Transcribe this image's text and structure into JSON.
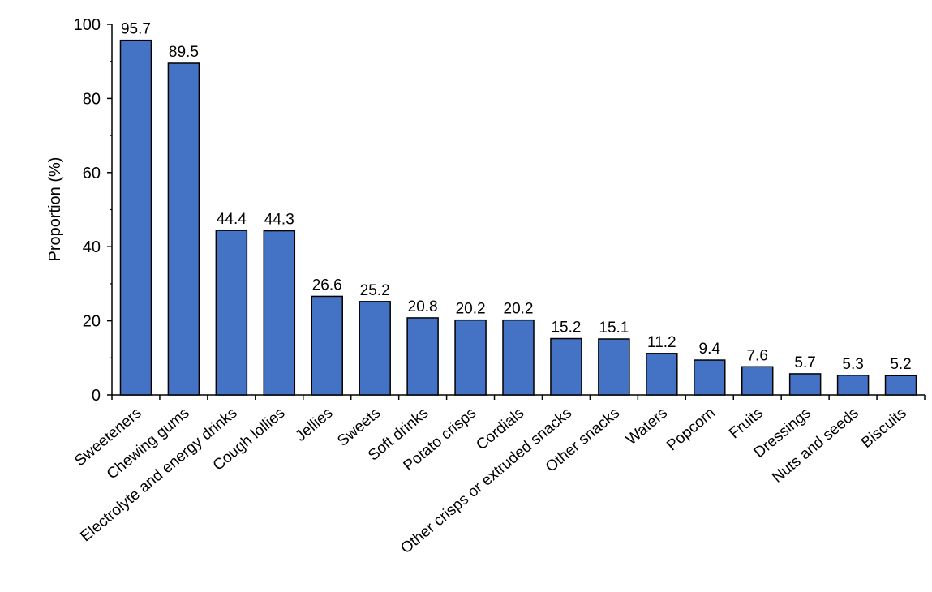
{
  "chart_data": {
    "type": "bar",
    "title": "",
    "xlabel": "",
    "ylabel": "Proportion (%)",
    "ylim": [
      0,
      100
    ],
    "yticks": [
      0,
      20,
      40,
      60,
      80,
      100
    ],
    "grid": false,
    "bar_color": "#4472C4",
    "bar_outline": "#000000",
    "categories": [
      "Sweeteners",
      "Chewing gums",
      "Electrolyte and energy drinks",
      "Cough lollies",
      "Jellies",
      "Sweets",
      "Soft drinks",
      "Potato crisps",
      "Cordials",
      "Other crisps or extruded snacks",
      "Other snacks",
      "Waters",
      "Popcorn",
      "Fruits",
      "Dressings",
      "Nuts and seeds",
      "Biscuits"
    ],
    "values": [
      95.7,
      89.5,
      44.4,
      44.3,
      26.6,
      25.2,
      20.8,
      20.2,
      20.2,
      15.2,
      15.1,
      11.2,
      9.4,
      7.6,
      5.7,
      5.3,
      5.2
    ],
    "value_labels": [
      "95.7",
      "89.5",
      "44.4",
      "44.3",
      "26.6",
      "25.2",
      "20.8",
      "20.2",
      "20.2",
      "15.2",
      "15.1",
      "11.2",
      "9.4",
      "7.6",
      "5.7",
      "5.3",
      "5.2"
    ]
  }
}
